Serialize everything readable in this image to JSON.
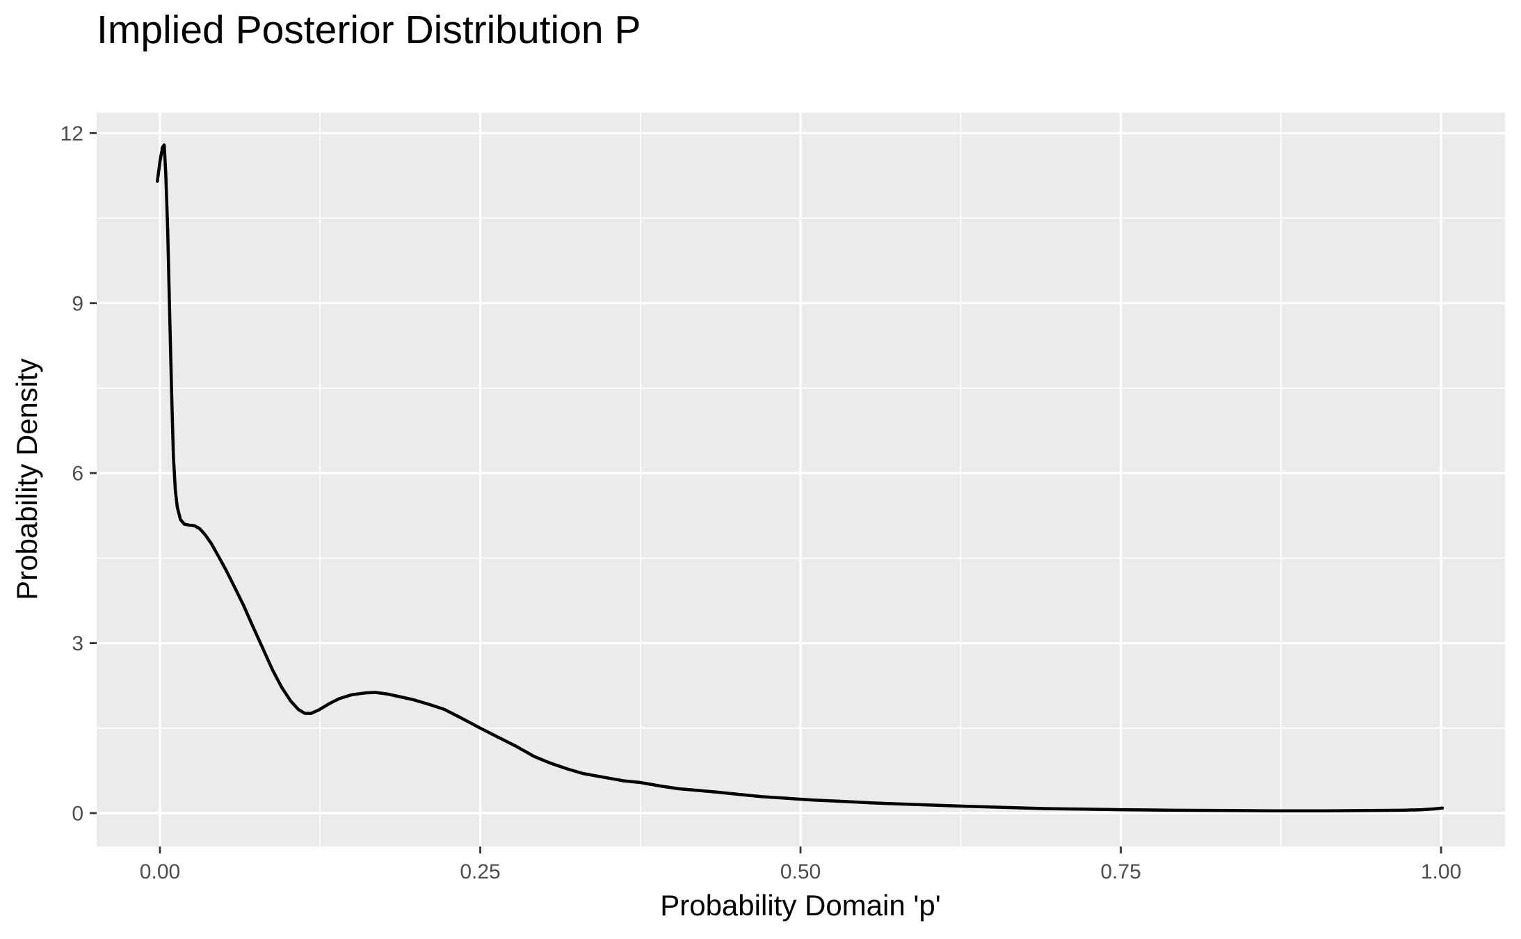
{
  "page": {
    "background": "#FFFFFF"
  },
  "chart_data": {
    "type": "line",
    "title": "Implied Posterior Distribution P",
    "xlabel": "Probability Domain 'p'",
    "ylabel": "Probability Density",
    "grid": true,
    "legend": "none",
    "panel_xlim": [
      -0.0494,
      1.0499
    ],
    "panel_ylim": [
      -0.589,
      12.36
    ],
    "xlim": [
      0,
      1
    ],
    "ylim": [
      0,
      12
    ],
    "x_ticks": {
      "values": [
        0,
        0.25,
        0.5,
        0.75,
        1.0
      ],
      "labels": [
        "0.00",
        "0.25",
        "0.50",
        "0.75",
        "1.00"
      ]
    },
    "y_ticks": {
      "values": [
        0,
        3,
        6,
        9,
        12
      ],
      "labels": [
        "0",
        "3",
        "6",
        "9",
        "12"
      ]
    },
    "x_minor_ticks": [
      0.125,
      0.375,
      0.625,
      0.875
    ],
    "y_minor_ticks": [
      1.5,
      4.5,
      7.5,
      10.5
    ],
    "series": [
      {
        "name": "posterior-density",
        "color": "#000000",
        "points": [
          [
            -0.002,
            11.15
          ],
          [
            0.0,
            11.5
          ],
          [
            0.002,
            11.75
          ],
          [
            0.0033,
            11.79
          ],
          [
            0.0045,
            11.3
          ],
          [
            0.006,
            10.3
          ],
          [
            0.0075,
            8.9
          ],
          [
            0.009,
            7.5
          ],
          [
            0.0105,
            6.3
          ],
          [
            0.012,
            5.7
          ],
          [
            0.0135,
            5.4
          ],
          [
            0.016,
            5.18
          ],
          [
            0.019,
            5.1
          ],
          [
            0.023,
            5.08
          ],
          [
            0.027,
            5.07
          ],
          [
            0.031,
            5.02
          ],
          [
            0.035,
            4.92
          ],
          [
            0.04,
            4.76
          ],
          [
            0.046,
            4.52
          ],
          [
            0.052,
            4.27
          ],
          [
            0.058,
            4.0
          ],
          [
            0.065,
            3.68
          ],
          [
            0.072,
            3.32
          ],
          [
            0.08,
            2.92
          ],
          [
            0.088,
            2.52
          ],
          [
            0.095,
            2.22
          ],
          [
            0.102,
            1.98
          ],
          [
            0.108,
            1.83
          ],
          [
            0.113,
            1.76
          ],
          [
            0.118,
            1.76
          ],
          [
            0.124,
            1.82
          ],
          [
            0.132,
            1.93
          ],
          [
            0.14,
            2.02
          ],
          [
            0.15,
            2.09
          ],
          [
            0.16,
            2.12
          ],
          [
            0.168,
            2.13
          ],
          [
            0.178,
            2.1
          ],
          [
            0.188,
            2.05
          ],
          [
            0.198,
            2.0
          ],
          [
            0.21,
            1.92
          ],
          [
            0.222,
            1.83
          ],
          [
            0.235,
            1.68
          ],
          [
            0.25,
            1.5
          ],
          [
            0.263,
            1.35
          ],
          [
            0.278,
            1.18
          ],
          [
            0.292,
            1.0
          ],
          [
            0.305,
            0.88
          ],
          [
            0.318,
            0.78
          ],
          [
            0.33,
            0.7
          ],
          [
            0.347,
            0.63
          ],
          [
            0.362,
            0.57
          ],
          [
            0.375,
            0.54
          ],
          [
            0.39,
            0.48
          ],
          [
            0.405,
            0.43
          ],
          [
            0.42,
            0.4
          ],
          [
            0.435,
            0.37
          ],
          [
            0.452,
            0.33
          ],
          [
            0.47,
            0.29
          ],
          [
            0.49,
            0.26
          ],
          [
            0.51,
            0.23
          ],
          [
            0.53,
            0.21
          ],
          [
            0.555,
            0.18
          ],
          [
            0.58,
            0.16
          ],
          [
            0.605,
            0.14
          ],
          [
            0.63,
            0.12
          ],
          [
            0.66,
            0.1
          ],
          [
            0.69,
            0.08
          ],
          [
            0.72,
            0.07
          ],
          [
            0.75,
            0.06
          ],
          [
            0.79,
            0.05
          ],
          [
            0.83,
            0.045
          ],
          [
            0.87,
            0.04
          ],
          [
            0.91,
            0.04
          ],
          [
            0.945,
            0.045
          ],
          [
            0.97,
            0.05
          ],
          [
            0.985,
            0.06
          ],
          [
            0.995,
            0.075
          ],
          [
            1.001,
            0.09
          ]
        ]
      }
    ],
    "style": {
      "panel_background": "#EBEBEB",
      "grid_color": "#FFFFFF",
      "line_color": "#000000",
      "tick_label_color": "#4D4D4D",
      "tick_mark_color": "#333333",
      "title_color": "#000000",
      "axis_title_color": "#000000"
    }
  }
}
